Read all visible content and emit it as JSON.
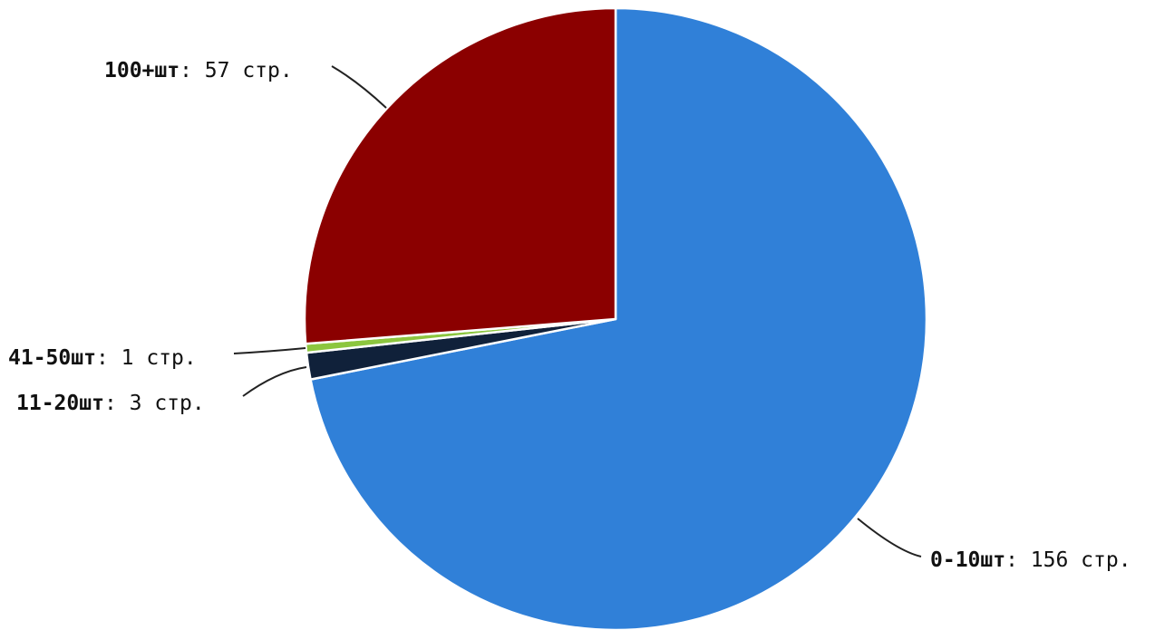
{
  "chart_data": {
    "type": "pie",
    "title": "",
    "start": "12 o'clock, clockwise",
    "slices": [
      {
        "category": "0-10шт",
        "value": 156,
        "value_label": "156 стр.",
        "color": "#3080d8"
      },
      {
        "category": "11-20шт",
        "value": 3,
        "value_label": "3 стр.",
        "color": "#10213a"
      },
      {
        "category": "41-50шт",
        "value": 1,
        "value_label": "1 стр.",
        "color": "#8cc63f"
      },
      {
        "category": "100+шт",
        "value": 57,
        "value_label": "57 стр.",
        "color": "#8b0000"
      }
    ]
  }
}
